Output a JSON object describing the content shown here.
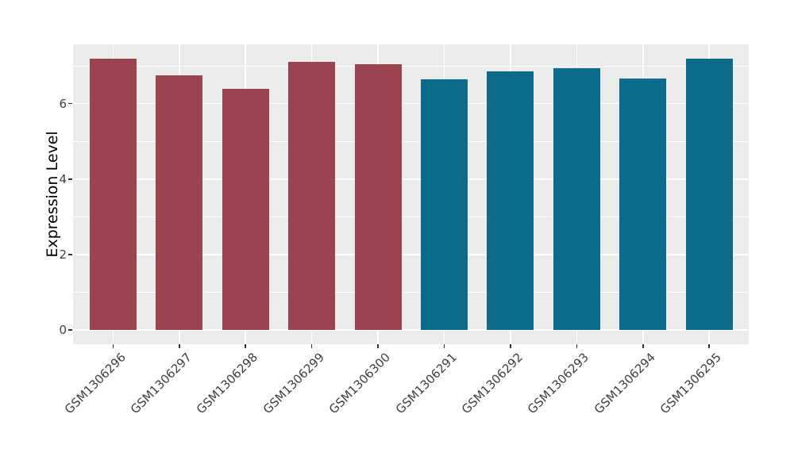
{
  "chart_data": {
    "type": "bar",
    "title": "",
    "xlabel": "",
    "ylabel": "Expression Level",
    "categories": [
      "GSM1306296",
      "GSM1306297",
      "GSM1306298",
      "GSM1306299",
      "GSM1306300",
      "GSM1306291",
      "GSM1306292",
      "GSM1306293",
      "GSM1306294",
      "GSM1306295"
    ],
    "values": [
      7.2,
      6.75,
      6.4,
      7.1,
      7.05,
      6.65,
      6.85,
      6.95,
      6.67,
      7.2
    ],
    "groups": [
      "maroon",
      "maroon",
      "maroon",
      "maroon",
      "maroon",
      "teal",
      "teal",
      "teal",
      "teal",
      "teal"
    ],
    "group_colors": {
      "maroon": "#9B4450",
      "teal": "#0C6A8A"
    },
    "yticks": [
      0,
      2,
      4,
      6
    ],
    "yticks_minor": [
      1,
      3,
      5,
      7
    ],
    "ylim": [
      0,
      7.56
    ],
    "x_tick_rotation_deg": 45,
    "grid": true,
    "legend_position": "none",
    "panel_background": "#EBEBEB",
    "gridline_color": "#FFFFFF",
    "axis_tick_color": "#333333",
    "tick_label_color": "#404040",
    "axis_title_color": "#000000"
  }
}
